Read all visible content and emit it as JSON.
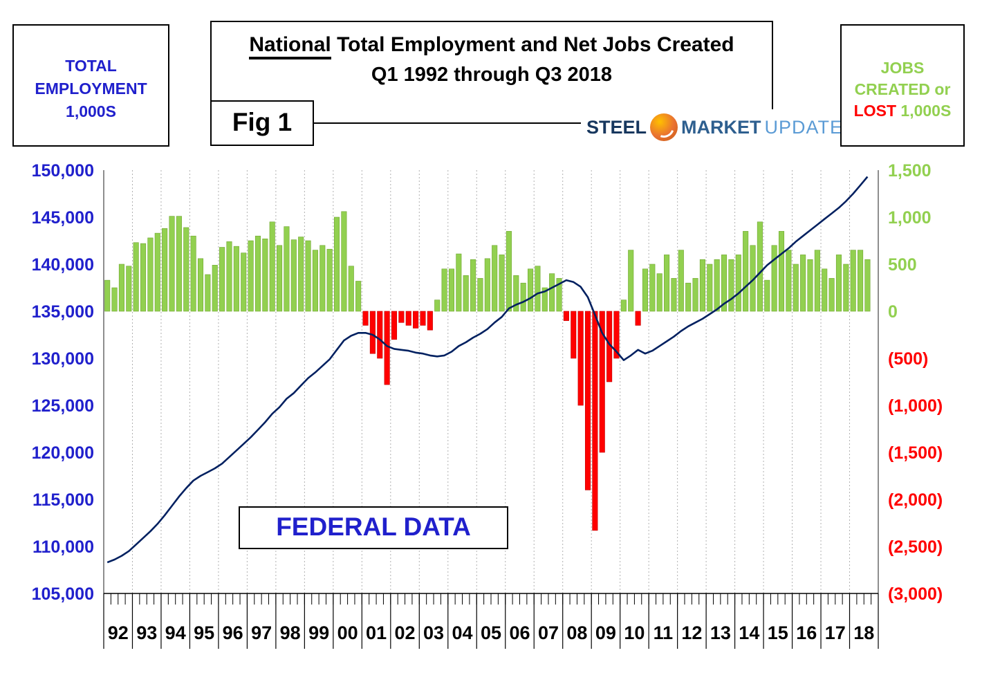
{
  "header": {
    "left_box": {
      "line1": "TOTAL",
      "line2": "EMPLOYMENT",
      "line3": "1,000S"
    },
    "title": {
      "part1": "National",
      "part2": " Total Employment and Net Jobs Created",
      "line2": "Q1 1992 through Q3 2018"
    },
    "fig_label": "Fig 1",
    "logo": {
      "steel": "STEEL",
      "market": "MARKET",
      "update": "UPDATE"
    },
    "right_box": {
      "line1": "JOBS",
      "line2": "CREATED or",
      "line3_red": "LOST",
      "line3_green": "1,000S"
    }
  },
  "overlay": {
    "federal_data": "FEDERAL DATA"
  },
  "colors": {
    "axis_blue": "#2020CC",
    "green": "#92D050",
    "green_dark": "#6FA52F",
    "red": "#FF0000",
    "red_dark": "#C00000",
    "line_navy": "#002060",
    "grid": "#B0B0B0"
  },
  "chart_data": {
    "type": "combo",
    "title": "National Total Employment and Net Jobs Created Q1 1992 through Q3 2018",
    "xlabel": "",
    "ylabel_left": "Total Employment 1,000s",
    "ylabel_right": "Jobs Created or Lost 1,000s",
    "grid": "vertical-dotted",
    "legend_position": "none",
    "years": [
      "92",
      "93",
      "94",
      "95",
      "96",
      "97",
      "98",
      "99",
      "00",
      "01",
      "02",
      "03",
      "04",
      "05",
      "06",
      "07",
      "08",
      "09",
      "10",
      "11",
      "12",
      "13",
      "14",
      "15",
      "16",
      "17",
      "18"
    ],
    "quarters_in_last_year": 3,
    "left_axis": {
      "min": 105000,
      "max": 150000,
      "step": 5000,
      "ticks": [
        "150,000",
        "145,000",
        "140,000",
        "135,000",
        "130,000",
        "125,000",
        "120,000",
        "115,000",
        "110,000",
        "105,000"
      ]
    },
    "right_axis": {
      "min": -3000,
      "max": 1500,
      "step": 500,
      "ticks": [
        "1,500",
        "1,000",
        "500",
        "0",
        "(500)",
        "(1,000)",
        "(1,500)",
        "(2,000)",
        "(2,500)",
        "(3,000)"
      ]
    },
    "series": [
      {
        "name": "Net Jobs Created or Lost (1,000s)",
        "type": "bar",
        "color_positive": "#92D050",
        "color_negative": "#FF0000",
        "values": [
          330,
          250,
          500,
          480,
          730,
          720,
          780,
          830,
          880,
          1010,
          1010,
          890,
          800,
          560,
          390,
          490,
          680,
          740,
          690,
          620,
          750,
          800,
          770,
          950,
          700,
          900,
          760,
          790,
          750,
          650,
          700,
          660,
          1000,
          1060,
          480,
          320,
          -150,
          -450,
          -500,
          -780,
          -300,
          -120,
          -150,
          -180,
          -150,
          -200,
          120,
          450,
          450,
          610,
          380,
          550,
          350,
          560,
          700,
          600,
          850,
          380,
          300,
          450,
          480,
          250,
          400,
          350,
          -100,
          -500,
          -1000,
          -1900,
          -2330,
          -1500,
          -750,
          -500,
          120,
          650,
          -150,
          450,
          500,
          400,
          600,
          350,
          650,
          300,
          350,
          550,
          500,
          550,
          600,
          550,
          600,
          850,
          700,
          950,
          330,
          700,
          850,
          650,
          500,
          600,
          550,
          650,
          450,
          350,
          600,
          500,
          650,
          650,
          550
        ]
      },
      {
        "name": "Total Employment (1,000s)",
        "type": "line",
        "color": "#002060",
        "values": [
          108300,
          108600,
          109000,
          109500,
          110200,
          110900,
          111600,
          112400,
          113300,
          114300,
          115300,
          116200,
          117000,
          117500,
          117900,
          118300,
          118800,
          119500,
          120200,
          120900,
          121600,
          122400,
          123200,
          124100,
          124800,
          125700,
          126300,
          127100,
          127900,
          128500,
          129200,
          129900,
          130900,
          131900,
          132400,
          132700,
          132700,
          132500,
          132000,
          131300,
          131000,
          130900,
          130800,
          130600,
          130500,
          130300,
          130200,
          130300,
          130700,
          131300,
          131700,
          132200,
          132600,
          133100,
          133800,
          134400,
          135300,
          135700,
          136000,
          136400,
          136900,
          137100,
          137500,
          137900,
          138300,
          138100,
          137600,
          136500,
          134600,
          132700,
          131500,
          130700,
          129800,
          130300,
          130900,
          130500,
          130800,
          131300,
          131800,
          132300,
          132900,
          133400,
          133800,
          134200,
          134700,
          135200,
          135800,
          136300,
          136900,
          137600,
          138300,
          139100,
          139900,
          140500,
          141100,
          141700,
          142400,
          143000,
          143600,
          144200,
          144800,
          145400,
          146000,
          146700,
          147500,
          148400,
          149300
        ]
      }
    ]
  }
}
